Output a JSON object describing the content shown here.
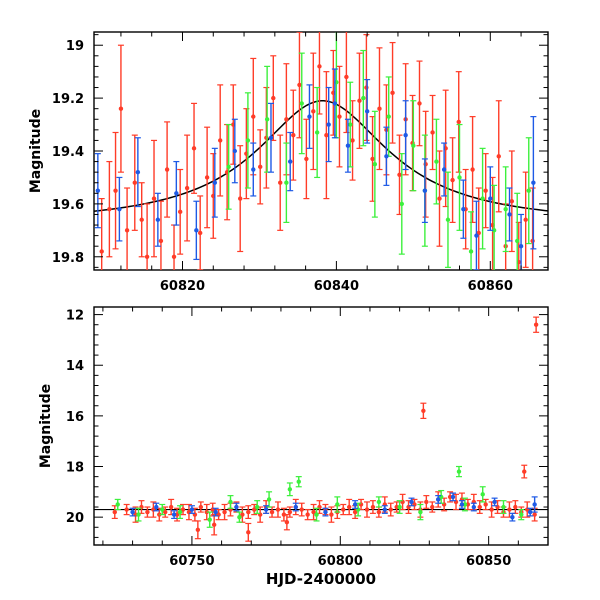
{
  "chart_data": [
    {
      "type": "scatter",
      "title": "",
      "xlabel": "",
      "ylabel": "Magnitude",
      "xlim": [
        60808.5,
        60867.5
      ],
      "ylim": [
        19.85,
        18.95
      ],
      "y_inverted": true,
      "x_ticks": [
        60820,
        60840,
        60860
      ],
      "x_tick_labels": [
        "60820",
        "60840",
        "60860"
      ],
      "y_ticks": [
        19,
        19.2,
        19.4,
        19.6,
        19.8
      ],
      "y_tick_labels": [
        "19",
        "19.2",
        "19.4",
        "19.6",
        "19.8"
      ],
      "grid": false,
      "legend": "none",
      "model_curve": {
        "shape": "peak",
        "peak_x": 60838.2,
        "peak_y": 19.21,
        "baseline_y": 19.68,
        "x_range": [
          60808.5,
          60867.5
        ]
      },
      "series": [
        {
          "color": "#ff3c28",
          "x": [
            60809.5,
            60810.5,
            60811.3,
            60812.0,
            60812.8,
            60813.8,
            60814.7,
            60815.4,
            60816.3,
            60817.2,
            60818.0,
            60818.9,
            60819.7,
            60820.6,
            60821.5,
            60822.3,
            60823.2,
            60824.0,
            60824.9,
            60825.8,
            60826.6,
            60827.5,
            60828.3,
            60829.2,
            60830.1,
            60830.9,
            60831.8,
            60832.7,
            60833.5,
            60834.4,
            60835.2,
            60836.1,
            60837.0,
            60837.8,
            60838.7,
            60839.6,
            60840.4,
            60841.3,
            60842.1,
            60843.0,
            60843.9,
            60844.7,
            60845.6,
            60846.5,
            60847.3,
            60848.2,
            60849.0,
            60849.9,
            60850.8,
            60851.6,
            60852.5,
            60853.4,
            60854.2,
            60855.1,
            60855.9,
            60856.8,
            60857.7,
            60858.5,
            60859.4,
            60860.3,
            60861.1,
            60862.0,
            60862.8,
            60863.7,
            60864.6,
            60865.5
          ],
          "y": [
            19.78,
            19.62,
            19.55,
            19.24,
            19.7,
            19.52,
            19.66,
            19.8,
            19.58,
            19.74,
            19.47,
            19.8,
            19.63,
            19.54,
            19.39,
            19.71,
            19.5,
            19.57,
            19.36,
            19.48,
            19.3,
            19.58,
            19.41,
            19.27,
            19.46,
            19.35,
            19.2,
            19.52,
            19.28,
            19.34,
            19.15,
            19.43,
            19.25,
            19.08,
            19.34,
            19.18,
            19.27,
            19.12,
            19.36,
            19.21,
            19.16,
            19.43,
            19.24,
            19.32,
            19.18,
            19.49,
            19.28,
            19.37,
            19.22,
            19.45,
            19.33,
            19.58,
            19.39,
            19.51,
            19.29,
            19.62,
            19.47,
            19.71,
            19.55,
            19.68,
            19.42,
            19.76,
            19.59,
            19.82,
            19.66,
            19.74
          ],
          "err": [
            0.2,
            0.18,
            0.22,
            0.24,
            0.16,
            0.18,
            0.14,
            0.2,
            0.22,
            0.15,
            0.18,
            0.12,
            0.16,
            0.2,
            0.17,
            0.14,
            0.19,
            0.16,
            0.21,
            0.18,
            0.15,
            0.2,
            0.17,
            0.22,
            0.14,
            0.19,
            0.16,
            0.18,
            0.21,
            0.17,
            0.2,
            0.15,
            0.22,
            0.18,
            0.24,
            0.16,
            0.19,
            0.21,
            0.15,
            0.18,
            0.2,
            0.16,
            0.23,
            0.17,
            0.19,
            0.15,
            0.21,
            0.18,
            0.16,
            0.2,
            0.14,
            0.18,
            0.22,
            0.16,
            0.19,
            0.15,
            0.2,
            0.17,
            0.14,
            0.18,
            0.21,
            0.16,
            0.19,
            0.15,
            0.18,
            0.2
          ]
        },
        {
          "color": "#3cf03c",
          "x": [
            60826.0,
            60828.5,
            60831.0,
            60833.5,
            60835.5,
            60837.5,
            60840.0,
            60841.8,
            60843.5,
            60845.0,
            60846.8,
            60848.5,
            60850.0,
            60851.5,
            60853.0,
            60854.5,
            60856.0,
            60857.5,
            60859.0,
            60860.5,
            60862.0,
            60863.5,
            60865.0
          ],
          "y": [
            19.46,
            19.36,
            19.28,
            19.52,
            19.22,
            19.33,
            19.14,
            19.3,
            19.2,
            19.45,
            19.27,
            19.6,
            19.38,
            19.55,
            19.44,
            19.66,
            19.5,
            19.78,
            19.58,
            19.7,
            19.62,
            19.74,
            19.55
          ],
          "err": [
            0.16,
            0.18,
            0.2,
            0.15,
            0.19,
            0.17,
            0.21,
            0.16,
            0.18,
            0.2,
            0.15,
            0.19,
            0.17,
            0.21,
            0.16,
            0.18,
            0.2,
            0.15,
            0.19,
            0.17,
            0.16,
            0.18,
            0.2
          ]
        },
        {
          "color": "#1e5ae6",
          "x": [
            60809.0,
            60811.8,
            60814.2,
            60816.8,
            60819.2,
            60821.8,
            60824.2,
            60826.8,
            60829.2,
            60831.5,
            60834.0,
            60836.5,
            60839.0,
            60839.8,
            60841.5,
            60844.0,
            60846.5,
            60849.0,
            60851.5,
            60854.0,
            60856.5,
            60858.2,
            60860.0,
            60862.5,
            60864.0,
            60865.6
          ],
          "y": [
            19.55,
            19.62,
            19.48,
            19.66,
            19.56,
            19.7,
            19.52,
            19.4,
            19.47,
            19.35,
            19.44,
            19.27,
            19.3,
            19.22,
            19.38,
            19.25,
            19.42,
            19.34,
            19.55,
            19.47,
            19.62,
            19.72,
            19.58,
            19.64,
            19.76,
            19.52
          ],
          "err": [
            0.14,
            0.12,
            0.13,
            0.1,
            0.12,
            0.11,
            0.13,
            0.12,
            0.1,
            0.13,
            0.11,
            0.12,
            0.14,
            0.13,
            0.1,
            0.12,
            0.11,
            0.13,
            0.12,
            0.1,
            0.11,
            0.13,
            0.12,
            0.1,
            0.12,
            0.25
          ]
        }
      ]
    },
    {
      "type": "scatter",
      "title": "",
      "xlabel": "HJD-2400000",
      "ylabel": "Magnitude",
      "xlim": [
        60717,
        60870
      ],
      "ylim": [
        21.1,
        11.7
      ],
      "y_inverted": true,
      "x_ticks": [
        60750,
        60800,
        60850
      ],
      "x_tick_labels": [
        "60750",
        "60800",
        "60850"
      ],
      "y_ticks": [
        12,
        14,
        16,
        18,
        20
      ],
      "y_tick_labels": [
        "12",
        "14",
        "16",
        "18",
        "20"
      ],
      "reference_line_y": 19.7,
      "grid": false,
      "legend": "none",
      "series": [
        {
          "color": "#ff3c28",
          "x": [
            60724.0,
            60728.0,
            60731.0,
            60733.0,
            60735.0,
            60737.0,
            60739.0,
            60741.0,
            60743.0,
            60745.0,
            60747.0,
            60749.0,
            60751.0,
            60753.0,
            60755.0,
            60757.0,
            60759.0,
            60761.0,
            60763.0,
            60765.0,
            60767.0,
            60769.0,
            60771.0,
            60773.0,
            60775.0,
            60777.0,
            60779.0,
            60781.0,
            60783.0,
            60785.0,
            60787.0,
            60789.0,
            60791.0,
            60793.0,
            60795.0,
            60797.0,
            60799.0,
            60801.0,
            60803.0,
            60805.0,
            60807.0,
            60809.0,
            60811.0,
            60813.0,
            60815.0,
            60817.0,
            60819.0,
            60821.0,
            60823.0,
            60825.0,
            60827.0,
            60829.0,
            60831.0,
            60833.0,
            60835.0,
            60837.0,
            60839.0,
            60841.0,
            60843.0,
            60845.0,
            60847.0,
            60849.0,
            60851.0,
            60853.0,
            60855.0,
            60857.0,
            60859.0,
            60861.0,
            60863.0,
            60865.5,
            60752.0,
            60757.5,
            60769.0,
            60782.0,
            60828.0,
            60862.0,
            60866.0
          ],
          "y": [
            19.8,
            19.7,
            19.9,
            19.6,
            19.8,
            19.7,
            19.9,
            19.8,
            19.6,
            19.9,
            19.7,
            19.8,
            19.9,
            19.6,
            19.8,
            19.7,
            19.9,
            19.8,
            19.7,
            19.6,
            19.9,
            19.8,
            19.7,
            19.9,
            19.6,
            19.8,
            19.7,
            19.9,
            19.8,
            19.6,
            19.7,
            19.9,
            19.8,
            19.6,
            19.7,
            19.9,
            19.8,
            19.7,
            19.6,
            19.8,
            19.5,
            19.7,
            19.6,
            19.8,
            19.5,
            19.7,
            19.6,
            19.4,
            19.6,
            19.5,
            19.7,
            19.4,
            19.6,
            19.3,
            19.5,
            19.2,
            19.4,
            19.3,
            19.5,
            19.4,
            19.6,
            19.5,
            19.7,
            19.6,
            19.8,
            19.7,
            19.6,
            19.8,
            19.7,
            19.9,
            20.5,
            20.3,
            20.6,
            20.2,
            15.8,
            18.2,
            12.4
          ],
          "err": [
            0.25,
            0.2,
            0.3,
            0.25,
            0.2,
            0.3,
            0.25,
            0.2,
            0.3,
            0.25,
            0.2,
            0.3,
            0.25,
            0.2,
            0.3,
            0.25,
            0.2,
            0.3,
            0.25,
            0.2,
            0.3,
            0.25,
            0.2,
            0.3,
            0.25,
            0.2,
            0.3,
            0.25,
            0.2,
            0.3,
            0.25,
            0.2,
            0.3,
            0.25,
            0.2,
            0.3,
            0.25,
            0.2,
            0.3,
            0.25,
            0.2,
            0.3,
            0.25,
            0.2,
            0.3,
            0.25,
            0.2,
            0.3,
            0.25,
            0.2,
            0.3,
            0.25,
            0.2,
            0.3,
            0.25,
            0.2,
            0.3,
            0.25,
            0.2,
            0.3,
            0.25,
            0.2,
            0.3,
            0.25,
            0.2,
            0.3,
            0.25,
            0.2,
            0.3,
            0.25,
            0.35,
            0.4,
            0.35,
            0.3,
            0.3,
            0.25,
            0.3
          ]
        },
        {
          "color": "#3cf03c",
          "x": [
            60725.0,
            60732.0,
            60740.0,
            60746.0,
            60756.0,
            60763.0,
            60766.0,
            60772.0,
            60776.0,
            60783.0,
            60786.0,
            60792.0,
            60799.0,
            60806.0,
            60813.0,
            60820.0,
            60827.0,
            60834.0,
            60840.0,
            60842.0,
            60848.0,
            60855.0,
            60861.0
          ],
          "y": [
            19.5,
            19.9,
            19.7,
            19.8,
            20.1,
            19.4,
            20.0,
            19.6,
            19.3,
            18.9,
            18.6,
            19.9,
            19.5,
            19.7,
            19.4,
            19.6,
            19.8,
            19.2,
            18.2,
            19.5,
            19.1,
            19.6,
            19.9
          ],
          "err": [
            0.2,
            0.25,
            0.2,
            0.25,
            0.3,
            0.25,
            0.2,
            0.25,
            0.3,
            0.25,
            0.2,
            0.25,
            0.3,
            0.25,
            0.2,
            0.25,
            0.3,
            0.25,
            0.2,
            0.25,
            0.3,
            0.25,
            0.2
          ]
        },
        {
          "color": "#1e5ae6",
          "x": [
            60730.0,
            60738.0,
            60744.0,
            60750.0,
            60758.0,
            60765.0,
            60775.0,
            60785.0,
            60795.0,
            60805.0,
            60815.0,
            60824.0,
            60833.0,
            60838.0,
            60841.0,
            60845.0,
            60852.0,
            60858.0,
            60864.0,
            60865.5
          ],
          "y": [
            19.8,
            19.6,
            19.9,
            19.7,
            19.8,
            19.6,
            19.7,
            19.6,
            19.8,
            19.5,
            19.7,
            19.4,
            19.3,
            19.2,
            19.5,
            19.6,
            19.4,
            20.0,
            19.8,
            19.5
          ],
          "err": [
            0.15,
            0.15,
            0.15,
            0.15,
            0.15,
            0.15,
            0.15,
            0.15,
            0.15,
            0.15,
            0.15,
            0.15,
            0.15,
            0.15,
            0.15,
            0.15,
            0.15,
            0.15,
            0.15,
            0.3
          ]
        }
      ]
    }
  ]
}
